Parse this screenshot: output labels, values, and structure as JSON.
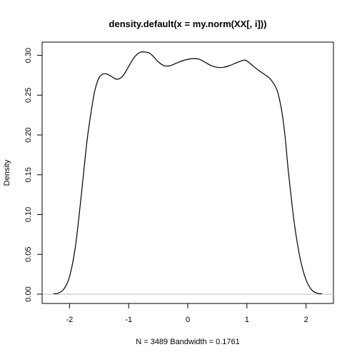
{
  "chart_data": {
    "type": "line",
    "title": "density.default(x = my.norm(XX[, i]))",
    "xlabel": "N = 3489   Bandwidth = 0.1761",
    "ylabel": "Density",
    "xlim": [
      -2.27,
      2.27
    ],
    "ylim": [
      0,
      0.305
    ],
    "x_ticks": [
      -2,
      -1,
      0,
      1,
      2
    ],
    "x_tick_labels": [
      "-2",
      "-1",
      "0",
      "1",
      "2"
    ],
    "y_ticks": [
      0.0,
      0.05,
      0.1,
      0.15,
      0.2,
      0.25,
      0.3
    ],
    "y_tick_labels": [
      "0.00",
      "0.05",
      "0.10",
      "0.15",
      "0.20",
      "0.25",
      "0.30"
    ],
    "grid": false,
    "baseline": 0,
    "series": [
      {
        "x": [
          -2.27,
          -2.2,
          -2.1,
          -2.0,
          -1.9,
          -1.8,
          -1.7,
          -1.6,
          -1.55,
          -1.5,
          -1.45,
          -1.4,
          -1.35,
          -1.3,
          -1.2,
          -1.1,
          -1.0,
          -0.9,
          -0.8,
          -0.7,
          -0.65,
          -0.6,
          -0.5,
          -0.4,
          -0.3,
          -0.2,
          -0.1,
          0.0,
          0.1,
          0.2,
          0.3,
          0.4,
          0.5,
          0.6,
          0.7,
          0.8,
          0.9,
          0.95,
          1.0,
          1.1,
          1.2,
          1.3,
          1.4,
          1.5,
          1.55,
          1.6,
          1.65,
          1.7,
          1.8,
          1.9,
          2.0,
          2.1,
          2.2,
          2.27
        ],
        "y": [
          0.0005,
          0.001,
          0.006,
          0.022,
          0.06,
          0.125,
          0.195,
          0.245,
          0.262,
          0.272,
          0.276,
          0.277,
          0.276,
          0.274,
          0.27,
          0.274,
          0.286,
          0.298,
          0.304,
          0.304,
          0.303,
          0.3,
          0.292,
          0.287,
          0.287,
          0.29,
          0.293,
          0.295,
          0.296,
          0.295,
          0.291,
          0.287,
          0.285,
          0.285,
          0.287,
          0.29,
          0.293,
          0.294,
          0.293,
          0.287,
          0.281,
          0.276,
          0.27,
          0.258,
          0.245,
          0.225,
          0.195,
          0.155,
          0.09,
          0.045,
          0.018,
          0.005,
          0.001,
          0.0005
        ]
      }
    ]
  }
}
